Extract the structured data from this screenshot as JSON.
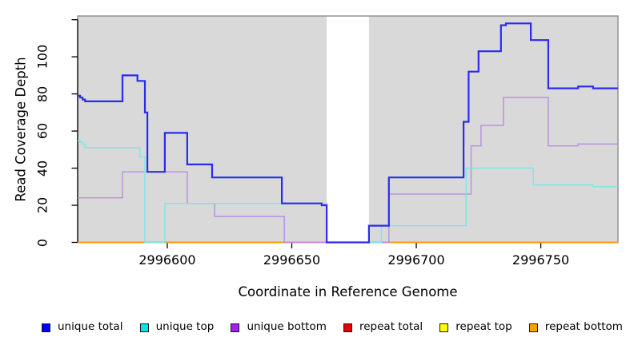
{
  "figure": {
    "x_axis_title": "Coordinate in Reference Genome",
    "y_axis_title": "Read Coverage Depth"
  },
  "legend": {
    "items": [
      {
        "label": "unique total",
        "color": "#0000ee"
      },
      {
        "label": "unique top",
        "color": "#00e6e6"
      },
      {
        "label": "unique bottom",
        "color": "#a020f0"
      },
      {
        "label": "repeat total",
        "color": "#e60000"
      },
      {
        "label": "repeat top",
        "color": "#ffff00"
      },
      {
        "label": "repeat bottom",
        "color": "#ffa000"
      }
    ]
  },
  "chart_data": {
    "type": "line",
    "subtype": "step",
    "title": "",
    "xlabel": "Coordinate in Reference Genome",
    "ylabel": "Read Coverage Depth",
    "xlim": [
      2996564,
      2996781
    ],
    "ylim": [
      0,
      122
    ],
    "x_ticks": [
      2996600,
      2996650,
      2996700,
      2996750
    ],
    "y_ticks": [
      0,
      20,
      40,
      60,
      80,
      100
    ],
    "y_ticks_unlabeled": [
      120
    ],
    "grid": false,
    "legend_position": "bottom",
    "panel_background": "#d9d9d9",
    "gap_region": {
      "from": 2996664,
      "to": 2996681,
      "color": "#ffffff"
    },
    "series": [
      {
        "name": "repeat total",
        "color": "#dd0000",
        "width": 1.6,
        "points": [
          [
            2996564,
            0
          ]
        ]
      },
      {
        "name": "repeat top",
        "color": "#f2f200",
        "width": 1.6,
        "points": [
          [
            2996564,
            0
          ]
        ]
      },
      {
        "name": "repeat bottom",
        "color": "#ff9900",
        "width": 1.8,
        "points": [
          [
            2996564,
            0
          ]
        ]
      },
      {
        "name": "unique bottom",
        "color": "#b98cdf",
        "width": 1.4,
        "points": [
          [
            2996564,
            24
          ],
          [
            2996582,
            38
          ],
          [
            2996608,
            21
          ],
          [
            2996619,
            14
          ],
          [
            2996647,
            0
          ],
          [
            2996689,
            26
          ],
          [
            2996722,
            52
          ],
          [
            2996726,
            63
          ],
          [
            2996735,
            78
          ],
          [
            2996753,
            52
          ],
          [
            2996765,
            53
          ]
        ]
      },
      {
        "name": "unique top",
        "color": "#7ce6e6",
        "width": 1.4,
        "points": [
          [
            2996564,
            55
          ],
          [
            2996565,
            54
          ],
          [
            2996566,
            53
          ],
          [
            2996567,
            51
          ],
          [
            2996589,
            46
          ],
          [
            2996591,
            0
          ],
          [
            2996599,
            21
          ],
          [
            2996664,
            0
          ],
          [
            2996686,
            9
          ],
          [
            2996720,
            40
          ],
          [
            2996747,
            31
          ],
          [
            2996771,
            30
          ]
        ]
      },
      {
        "name": "unique total",
        "color": "#2a2af0",
        "width": 2.2,
        "points": [
          [
            2996564,
            79
          ],
          [
            2996565,
            78
          ],
          [
            2996566,
            77
          ],
          [
            2996567,
            76
          ],
          [
            2996582,
            90
          ],
          [
            2996588,
            87
          ],
          [
            2996591,
            70
          ],
          [
            2996592,
            38
          ],
          [
            2996599,
            59
          ],
          [
            2996608,
            42
          ],
          [
            2996618,
            35
          ],
          [
            2996646,
            21
          ],
          [
            2996662,
            20
          ],
          [
            2996664,
            0
          ],
          [
            2996681,
            9
          ],
          [
            2996689,
            35
          ],
          [
            2996719,
            65
          ],
          [
            2996721,
            92
          ],
          [
            2996725,
            103
          ],
          [
            2996734,
            117
          ],
          [
            2996736,
            118
          ],
          [
            2996746,
            109
          ],
          [
            2996753,
            83
          ],
          [
            2996765,
            84
          ],
          [
            2996771,
            83
          ]
        ]
      }
    ]
  }
}
